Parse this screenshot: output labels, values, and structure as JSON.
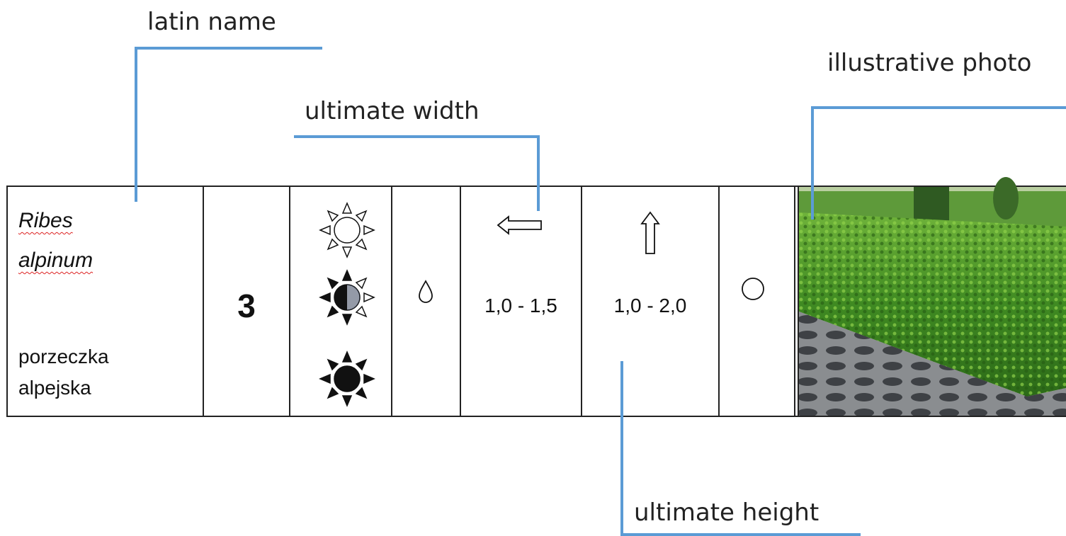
{
  "annotations": {
    "latin_name": "latin name",
    "ultimate_width": "ultimate width",
    "illustrative_photo": "illustrative photo",
    "ultimate_height": "ultimate height"
  },
  "row": {
    "latin_name": "Ribes alpinum",
    "common_name": "porzeczka alpejska",
    "zone": "3",
    "width": "1,0 - 1,5",
    "height": "1,0 - 2,0"
  }
}
